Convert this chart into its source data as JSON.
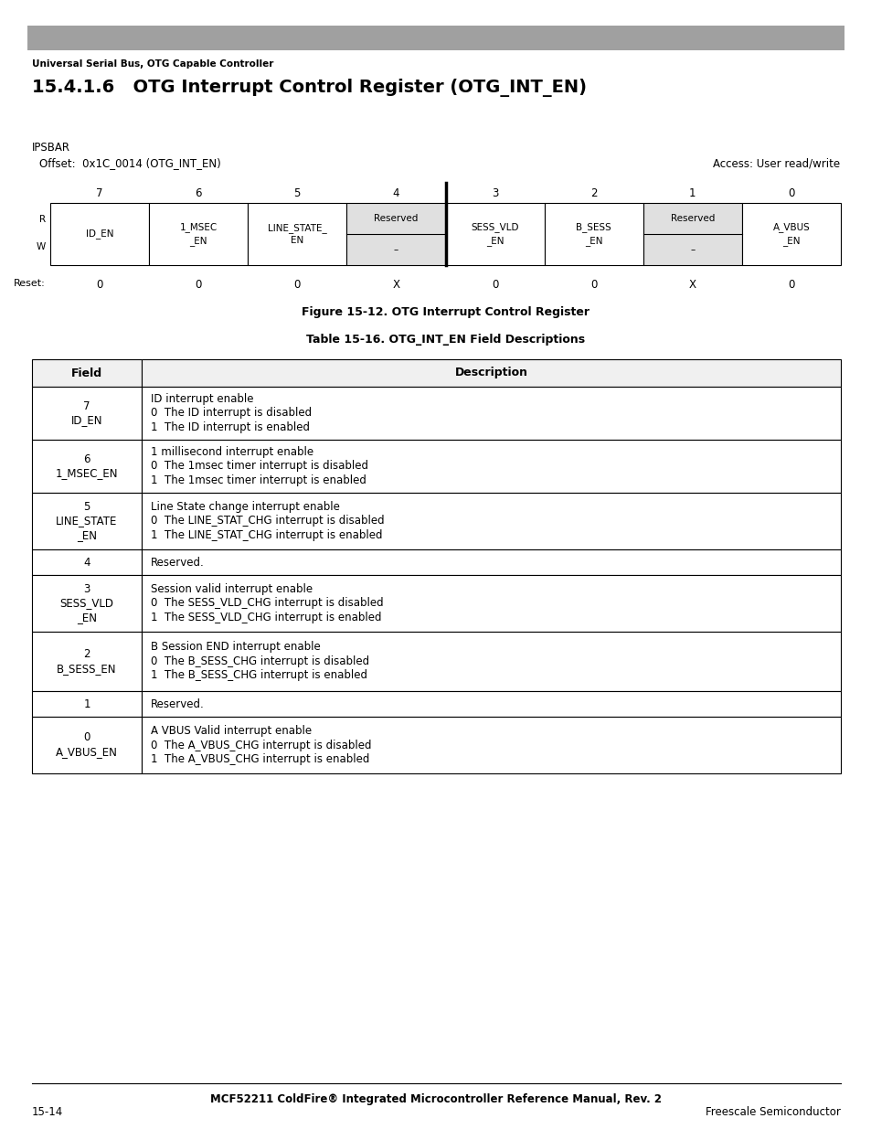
{
  "page_width": 9.54,
  "page_height": 12.35,
  "header_bar_color": "#a0a0a0",
  "header_text": "Universal Serial Bus, OTG Capable Controller",
  "section_title": "15.4.1.6   OTG Interrupt Control Register (OTG_INT_EN)",
  "ipsbar_label": "IPSBAR",
  "offset_text": "Offset:  0x1C_0014 (OTG_INT_EN)",
  "access_text": "Access: User read/write",
  "bit_positions": [
    "7",
    "6",
    "5",
    "4",
    "3",
    "2",
    "1",
    "0"
  ],
  "register_fields": [
    {
      "name": "ID_EN",
      "span": 1,
      "col": 0,
      "reserved": false
    },
    {
      "name": "1_MSEC\n_EN",
      "span": 1,
      "col": 1,
      "reserved": false
    },
    {
      "name": "LINE_STATE_\nEN",
      "span": 1,
      "col": 2,
      "reserved": false
    },
    {
      "name": "Reserved\n–",
      "span": 1,
      "col": 3,
      "reserved": true
    },
    {
      "name": "SESS_VLD\n_EN",
      "span": 1,
      "col": 4,
      "reserved": false
    },
    {
      "name": "B_SESS\n_EN",
      "span": 1,
      "col": 5,
      "reserved": false
    },
    {
      "name": "Reserved\n–",
      "span": 1,
      "col": 6,
      "reserved": true
    },
    {
      "name": "A_VBUS\n_EN",
      "span": 1,
      "col": 7,
      "reserved": false
    }
  ],
  "reset_values": [
    "0",
    "0",
    "0",
    "X",
    "0",
    "0",
    "X",
    "0"
  ],
  "figure_caption": "Figure 15-12. OTG Interrupt Control Register",
  "table_title": "Table 15-16. OTG_INT_EN Field Descriptions",
  "table_col_headers": [
    "Field",
    "Description"
  ],
  "table_rows": [
    {
      "field": "7\nID_EN",
      "description": "ID interrupt enable\n0  The ID interrupt is disabled\n1  The ID interrupt is enabled"
    },
    {
      "field": "6\n1_MSEC_EN",
      "description": "1 millisecond interrupt enable\n0  The 1msec timer interrupt is disabled\n1  The 1msec timer interrupt is enabled"
    },
    {
      "field": "5\nLINE_STATE\n_EN",
      "description": "Line State change interrupt enable\n0  The LINE_STAT_CHG interrupt is disabled\n1  The LINE_STAT_CHG interrupt is enabled"
    },
    {
      "field": "4",
      "description": "Reserved."
    },
    {
      "field": "3\nSESS_VLD\n_EN",
      "description": "Session valid interrupt enable\n0  The SESS_VLD_CHG interrupt is disabled\n1  The SESS_VLD_CHG interrupt is enabled"
    },
    {
      "field": "2\nB_SESS_EN",
      "description": "B Session END interrupt enable\n0  The B_SESS_CHG interrupt is disabled\n1  The B_SESS_CHG interrupt is enabled"
    },
    {
      "field": "1",
      "description": "Reserved."
    },
    {
      "field": "0\nA_VBUS_EN",
      "description": "A VBUS Valid interrupt enable\n0  The A_VBUS_CHG interrupt is disabled\n1  The A_VBUS_CHG interrupt is enabled"
    }
  ],
  "footer_center": "MCF52211 ColdFire® Integrated Microcontroller Reference Manual, Rev. 2",
  "footer_left": "15-14",
  "footer_right": "Freescale Semiconductor",
  "bg_color": "#ffffff",
  "text_color": "#000000",
  "table_border_color": "#000000",
  "reserved_bg": "#e0e0e0"
}
